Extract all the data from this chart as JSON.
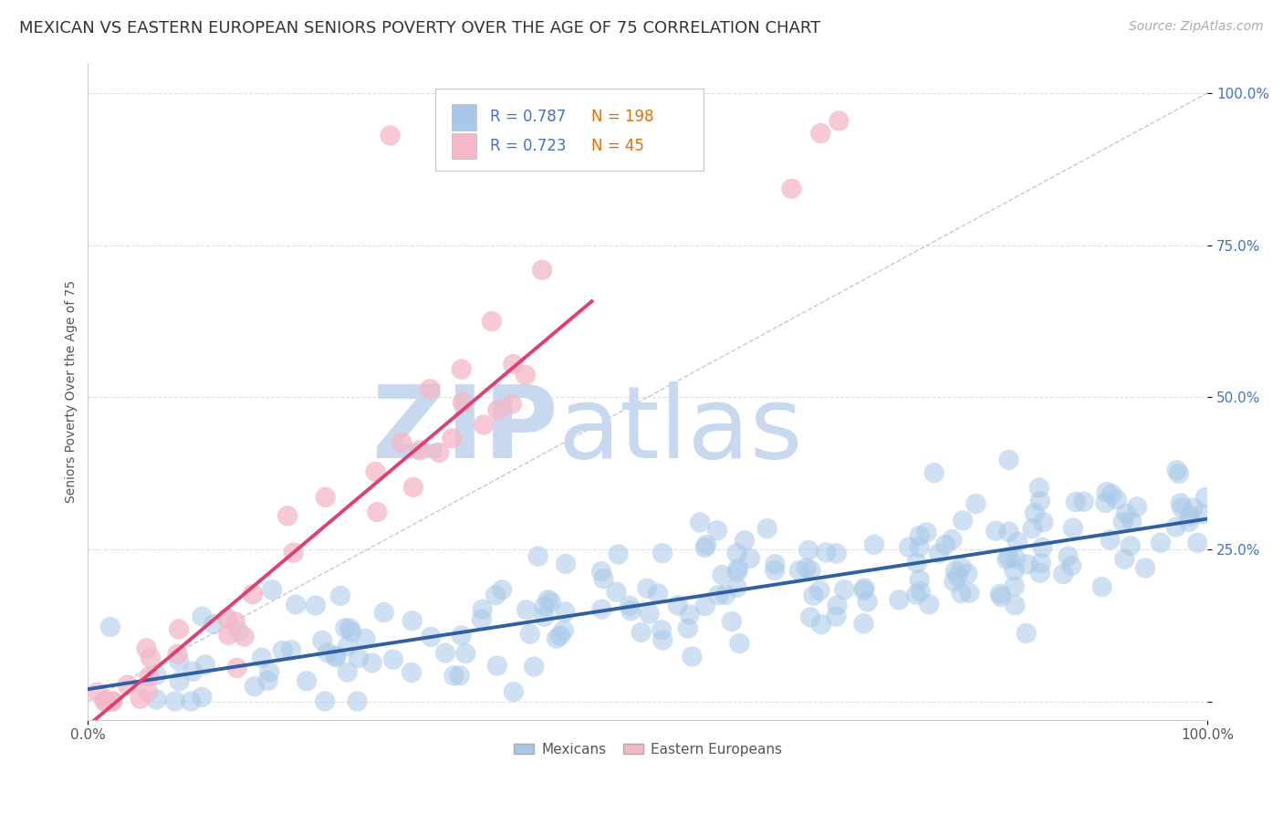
{
  "title": "MEXICAN VS EASTERN EUROPEAN SENIORS POVERTY OVER THE AGE OF 75 CORRELATION CHART",
  "source": "Source: ZipAtlas.com",
  "ylabel": "Seniors Poverty Over the Age of 75",
  "xlim": [
    0,
    1
  ],
  "ylim": [
    -0.03,
    1.05
  ],
  "ytick_positions": [
    0.0,
    0.25,
    0.5,
    0.75,
    1.0
  ],
  "ytick_labels": [
    "",
    "25.0%",
    "50.0%",
    "75.0%",
    "100.0%"
  ],
  "xtick_positions": [
    0.0,
    1.0
  ],
  "xtick_labels": [
    "0.0%",
    "100.0%"
  ],
  "mexican_R": 0.787,
  "mexican_N": 198,
  "eastern_R": 0.723,
  "eastern_N": 45,
  "mexican_color": "#a8c8e8",
  "eastern_color": "#f4b8c8",
  "mexican_line_color": "#3060a0",
  "eastern_line_color": "#e04070",
  "ref_line_color": "#c8c8c8",
  "title_fontsize": 13,
  "source_fontsize": 10,
  "axis_label_fontsize": 10,
  "tick_fontsize": 11,
  "watermark_zip_color": "#c8d8ee",
  "watermark_atlas_color": "#c8d8ee",
  "background_color": "#ffffff",
  "grid_color": "#e0e0e0",
  "legend_labels": [
    "Mexicans",
    "Eastern Europeans"
  ],
  "mexican_line_slope": 0.28,
  "mexican_line_intercept": 0.02,
  "eastern_line_slope": 1.55,
  "eastern_line_intercept": -0.04,
  "ytick_color": "#4472c4",
  "xtick_color": "#555555"
}
